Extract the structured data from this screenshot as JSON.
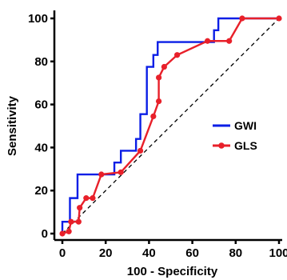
{
  "chart_data": {
    "type": "line",
    "title": "",
    "xlabel": "100 - Specificity",
    "ylabel": "Sensitivity",
    "xlim": [
      0,
      100
    ],
    "ylim": [
      0,
      100
    ],
    "xticks": [
      0,
      20,
      40,
      60,
      80,
      100
    ],
    "yticks": [
      0,
      20,
      40,
      60,
      80,
      100
    ],
    "grid": false,
    "legend_position": "right",
    "reference_line": {
      "style": "dashed",
      "from": [
        0,
        0
      ],
      "to": [
        100,
        100
      ],
      "color": "#000000"
    },
    "series": [
      {
        "name": "GWI",
        "color": "#0a1ee6",
        "step": true,
        "markers": false,
        "points": [
          [
            0,
            0
          ],
          [
            0,
            5.5
          ],
          [
            3.5,
            5.5
          ],
          [
            3.5,
            16.5
          ],
          [
            7,
            16.5
          ],
          [
            7,
            27.5
          ],
          [
            24,
            27.5
          ],
          [
            24,
            33
          ],
          [
            27,
            33
          ],
          [
            27,
            38.5
          ],
          [
            34,
            38.5
          ],
          [
            34,
            44
          ],
          [
            36,
            44
          ],
          [
            36,
            55.5
          ],
          [
            39,
            55.5
          ],
          [
            39,
            77.5
          ],
          [
            42,
            77.5
          ],
          [
            42,
            83
          ],
          [
            44,
            83
          ],
          [
            44,
            89
          ],
          [
            70,
            89
          ],
          [
            70,
            94.5
          ],
          [
            72,
            94.5
          ],
          [
            72,
            100
          ],
          [
            100,
            100
          ]
        ]
      },
      {
        "name": "GLS",
        "color": "#e8202a",
        "step": false,
        "markers": true,
        "points": [
          [
            0,
            0
          ],
          [
            3,
            1
          ],
          [
            4,
            5.5
          ],
          [
            7.5,
            5.5
          ],
          [
            8,
            12
          ],
          [
            11,
            16.5
          ],
          [
            14,
            16.5
          ],
          [
            18,
            27.5
          ],
          [
            27,
            28.5
          ],
          [
            36,
            38.5
          ],
          [
            42,
            54.5
          ],
          [
            44.5,
            61.5
          ],
          [
            44.5,
            72.5
          ],
          [
            47,
            77.5
          ],
          [
            53,
            83
          ],
          [
            67,
            89.5
          ],
          [
            77,
            89.5
          ],
          [
            83,
            100
          ],
          [
            100,
            100
          ]
        ]
      }
    ]
  }
}
